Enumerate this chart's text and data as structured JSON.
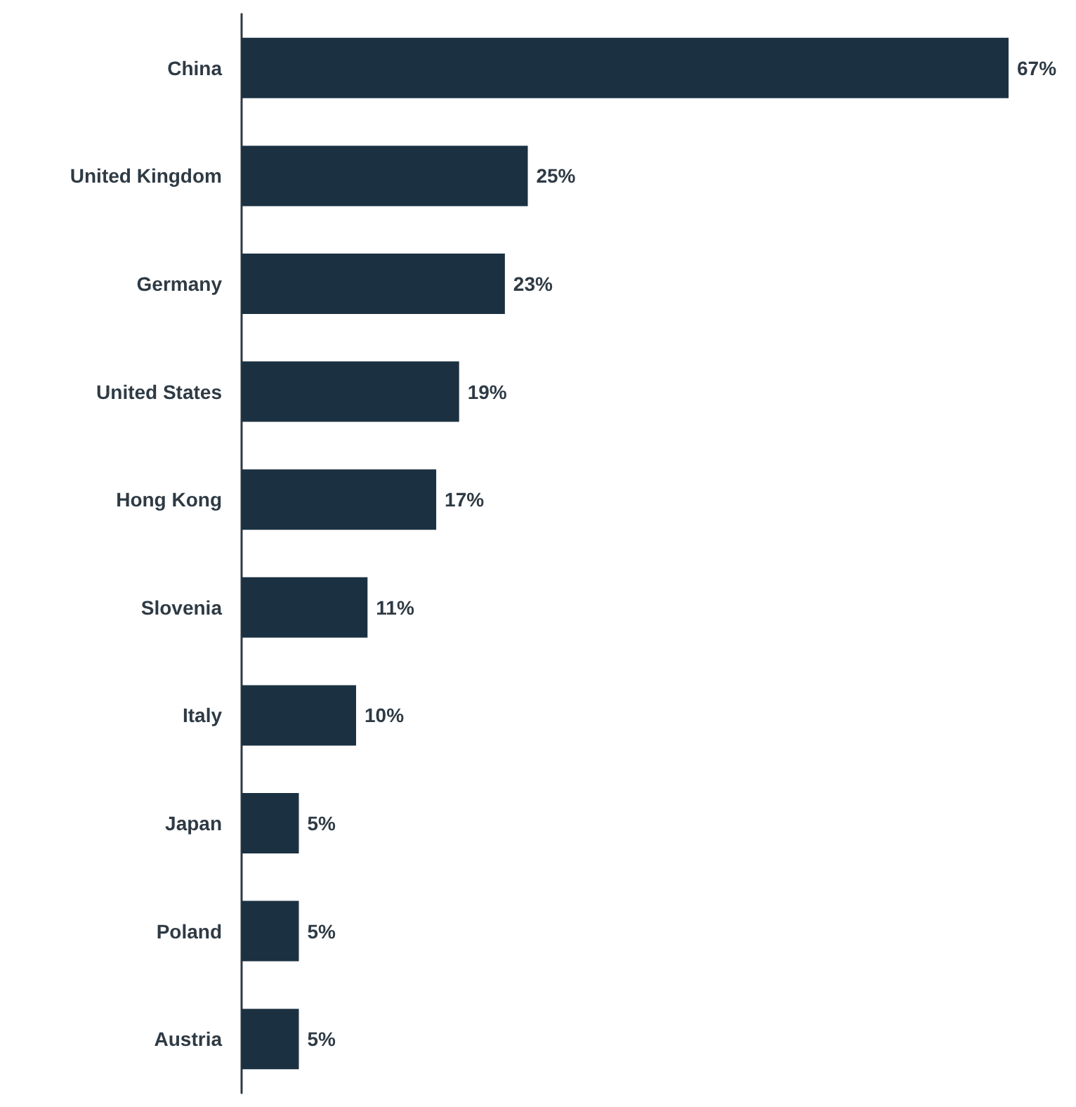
{
  "chart_data": {
    "type": "bar",
    "orientation": "horizontal",
    "categories": [
      "China",
      "United Kingdom",
      "Germany",
      "United States",
      "Hong Kong",
      "Slovenia",
      "Italy",
      "Japan",
      "Poland",
      "Austria"
    ],
    "values": [
      67,
      25,
      23,
      19,
      17,
      11,
      10,
      5,
      5,
      5
    ],
    "value_labels": [
      "67%",
      "25%",
      "23%",
      "19%",
      "17%",
      "11%",
      "10%",
      "5%",
      "5%",
      "5%"
    ],
    "color": "#1b3141"
  }
}
